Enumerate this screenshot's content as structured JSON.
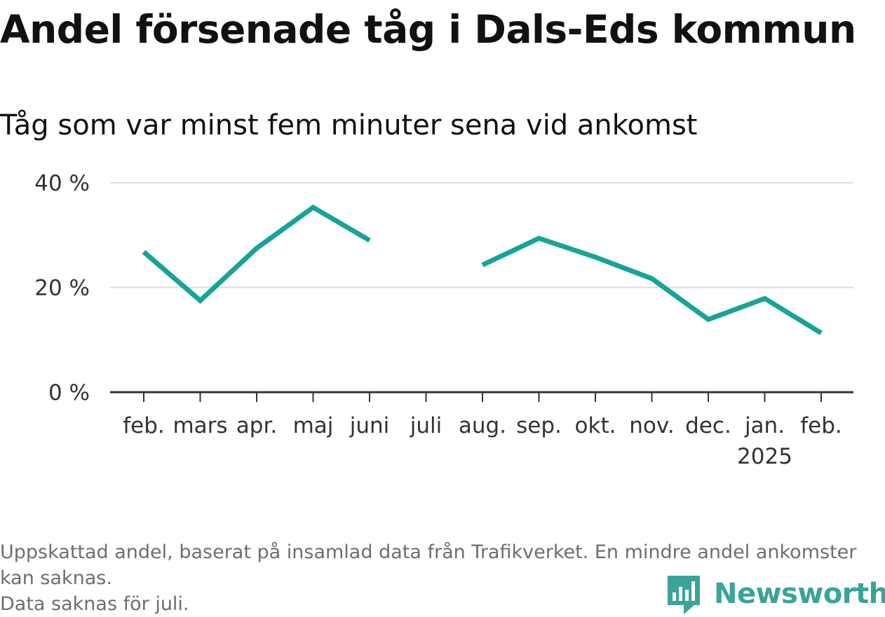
{
  "title": "Andel försenade tåg i Dals-Eds kommun",
  "subtitle": "Tåg som var minst fem minuter sena vid ankomst",
  "footer": {
    "note_line1": "Uppskattad andel, baserat på insamlad data från Trafikverket. En mindre andel ankomster kan saknas.",
    "note_line2": "Data saknas för juli."
  },
  "brand": {
    "name": "Newsworthy",
    "icon": "newsworthy-chart-icon",
    "color": "#3aa39a"
  },
  "colors": {
    "line": "#17a398",
    "grid": "#dddddd",
    "axis": "#333333"
  },
  "chart_data": {
    "type": "line",
    "categories": [
      "feb.",
      "mars",
      "apr.",
      "maj",
      "juni",
      "juli",
      "aug.",
      "sep.",
      "okt.",
      "nov.",
      "dec.",
      "jan.",
      "feb."
    ],
    "category_sublabels": [
      "",
      "",
      "",
      "",
      "",
      "",
      "",
      "",
      "",
      "",
      "",
      "2025",
      ""
    ],
    "series": [
      {
        "values": [
          26.8,
          17.5,
          27.5,
          35.3,
          29.0,
          null,
          24.3,
          29.4,
          25.8,
          21.7,
          13.9,
          17.9,
          11.3
        ]
      }
    ],
    "ylim": [
      0,
      40
    ],
    "yticks": [
      0,
      20,
      40
    ],
    "ytick_labels": [
      "0 %",
      "20 %",
      "40 %"
    ],
    "grid": true,
    "xlabel": "",
    "ylabel": ""
  }
}
